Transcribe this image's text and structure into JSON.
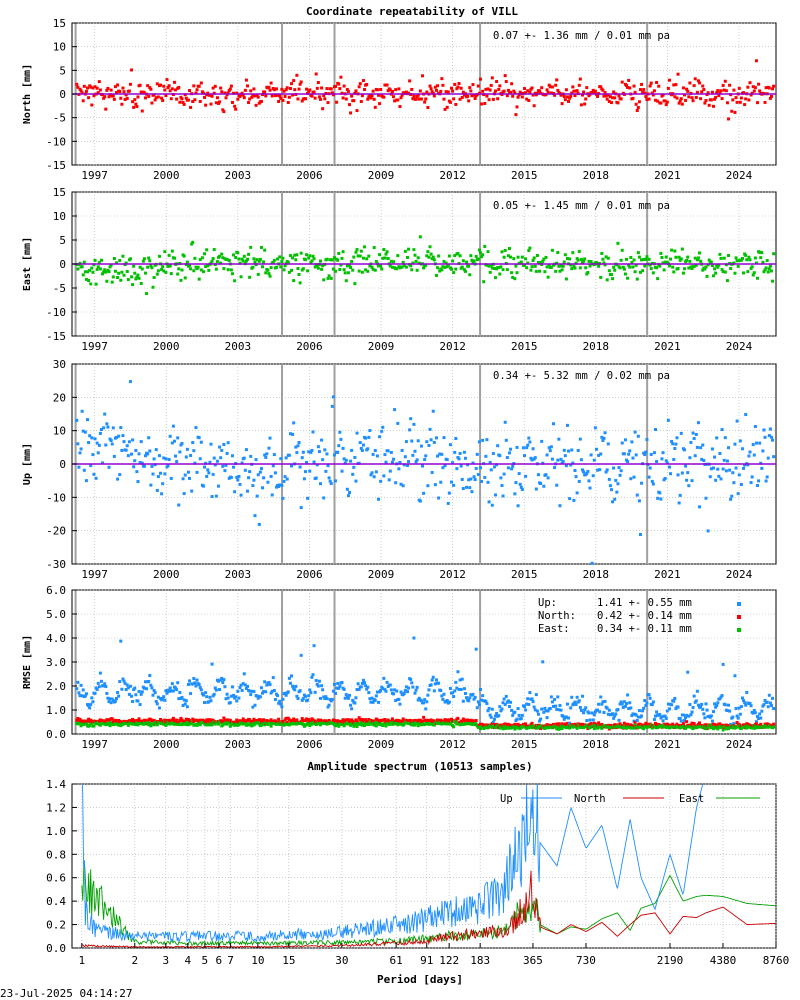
{
  "title": "Coordinate repeatability of VILL",
  "timestamp": "23-Jul-2025 04:14:27",
  "colors": {
    "north": "#ff0000",
    "east": "#00c000",
    "up": "#1e8fff",
    "mean_line": "#9400d3",
    "offset_line": "#a0a0a0",
    "grid": "#b0b0b0"
  },
  "time_axis": {
    "tick_labels": [
      "1997",
      "2000",
      "2003",
      "2006",
      "2009",
      "2012",
      "2015",
      "2018",
      "2021",
      "2024"
    ],
    "tick_years": [
      1997,
      2000,
      2003,
      2006,
      2009,
      2012,
      2015,
      2018,
      2021,
      2024
    ],
    "xlim": [
      1996.05,
      2025.55
    ],
    "equipment_changes": [
      1996.2,
      2004.85,
      2007.05,
      2013.15,
      2020.15
    ]
  },
  "chart_data": [
    {
      "type": "scatter",
      "component": "North",
      "ylabel": "North [mm]",
      "ylim": [
        -15,
        15
      ],
      "y_ticks": [
        -15,
        -10,
        -5,
        0,
        5,
        10,
        15
      ],
      "y_tick_labels": [
        "-15",
        "-10",
        "-5",
        "0",
        "5",
        "10",
        "15"
      ],
      "stats_label": "0.07 +- 1.36 mm /  0.01 mm pa",
      "mean": 0.07,
      "std": 1.36,
      "rate": 0.01,
      "grid": true
    },
    {
      "type": "scatter",
      "component": "East",
      "ylabel": "East [mm]",
      "ylim": [
        -15,
        15
      ],
      "y_ticks": [
        -15,
        -10,
        -5,
        0,
        5,
        10,
        15
      ],
      "y_tick_labels": [
        "-15",
        "-10",
        "-5",
        "0",
        "5",
        "10",
        "15"
      ],
      "stats_label": "0.05 +- 1.45 mm /  0.01 mm pa",
      "mean": 0.05,
      "std": 1.45,
      "rate": 0.01,
      "grid": true
    },
    {
      "type": "scatter",
      "component": "Up",
      "ylabel": "Up [mm]",
      "ylim": [
        -30,
        30
      ],
      "y_ticks": [
        -30,
        -20,
        -10,
        0,
        10,
        20,
        30
      ],
      "y_tick_labels": [
        "-30",
        "-20",
        "-10",
        "0",
        "10",
        "20",
        "30"
      ],
      "stats_label": "0.34 +- 5.32 mm /  0.02 mm pa",
      "mean": 0.34,
      "std": 5.32,
      "rate": 0.02,
      "grid": true
    },
    {
      "type": "scatter",
      "component": "RMSE",
      "ylabel": "RMSE [mm]",
      "ylim": [
        0,
        6
      ],
      "y_ticks": [
        0,
        1,
        2,
        3,
        4,
        5,
        6
      ],
      "y_tick_labels": [
        "0.0",
        "1.0",
        "2.0",
        "3.0",
        "4.0",
        "5.0",
        "6.0"
      ],
      "legend": [
        {
          "name": "Up:",
          "stats": "1.41 +- 0.55 mm",
          "mean": 1.41,
          "std": 0.55,
          "color": "#1e8fff"
        },
        {
          "name": "North:",
          "stats": "0.42 +- 0.14 mm",
          "mean": 0.42,
          "std": 0.14,
          "color": "#ff0000"
        },
        {
          "name": "East:",
          "stats": "0.34 +- 0.11 mm",
          "mean": 0.34,
          "std": 0.11,
          "color": "#00c000"
        }
      ],
      "grid": true
    },
    {
      "type": "line",
      "title": "Amplitude spectrum (10513 samples)",
      "xlabel": "Period [days]",
      "xscale": "log",
      "xlim": [
        0.88,
        8760
      ],
      "x_ticks": [
        1,
        2,
        3,
        4,
        5,
        6,
        7,
        10,
        15,
        30,
        61,
        91,
        122,
        183,
        365,
        730,
        2190,
        4380,
        8760
      ],
      "x_tick_labels": [
        "1",
        "2",
        "3",
        "4",
        "5",
        "6",
        "7",
        "10",
        "15",
        "30",
        "61",
        "91",
        "122",
        "183",
        "365",
        "730",
        "2190",
        "4380",
        "8760"
      ],
      "ylim": [
        0,
        1.4
      ],
      "y_ticks": [
        0,
        0.2,
        0.4,
        0.6,
        0.8,
        1.0,
        1.2,
        1.4
      ],
      "y_tick_labels": [
        "0.0",
        "0.2",
        "0.4",
        "0.6",
        "0.8",
        "1.0",
        "1.2",
        "1.4"
      ],
      "legend_position": "top-right",
      "series": [
        {
          "name": "Up",
          "color": "#1e8fff",
          "x": [
            1,
            1.05,
            1.2,
            2,
            5,
            10,
            30,
            61,
            91,
            122,
            183,
            250,
            300,
            365,
            400,
            500,
            600,
            730,
            900,
            1100,
            1300,
            1500,
            1800,
            2190,
            2600,
            3100,
            3500
          ],
          "y": [
            1.45,
            0.3,
            0.15,
            0.1,
            0.1,
            0.1,
            0.13,
            0.2,
            0.25,
            0.3,
            0.35,
            0.5,
            0.8,
            1.3,
            0.9,
            0.7,
            1.2,
            0.85,
            1.05,
            0.5,
            1.1,
            0.6,
            0.33,
            0.8,
            0.45,
            1.2,
            1.5
          ]
        },
        {
          "name": "North",
          "color": "#cc0000",
          "x": [
            1,
            2,
            5,
            10,
            30,
            61,
            91,
            122,
            183,
            250,
            300,
            365,
            400,
            500,
            600,
            730,
            900,
            1100,
            1300,
            1500,
            1800,
            2190,
            2600,
            3100,
            3500,
            4380,
            6000,
            8760
          ],
          "y": [
            0.02,
            0.01,
            0.01,
            0.01,
            0.02,
            0.04,
            0.06,
            0.1,
            0.12,
            0.15,
            0.25,
            0.53,
            0.18,
            0.12,
            0.2,
            0.14,
            0.22,
            0.1,
            0.2,
            0.28,
            0.3,
            0.12,
            0.27,
            0.26,
            0.3,
            0.35,
            0.2,
            0.21
          ]
        },
        {
          "name": "East",
          "color": "#00a000",
          "x": [
            1,
            2,
            5,
            10,
            30,
            61,
            91,
            122,
            183,
            250,
            300,
            365,
            400,
            500,
            600,
            730,
            900,
            1100,
            1300,
            1500,
            1800,
            2190,
            2600,
            3100,
            3500,
            4380,
            6000,
            8760
          ],
          "y": [
            0.6,
            0.05,
            0.04,
            0.04,
            0.05,
            0.06,
            0.08,
            0.1,
            0.12,
            0.15,
            0.28,
            0.42,
            0.2,
            0.12,
            0.18,
            0.16,
            0.25,
            0.3,
            0.15,
            0.34,
            0.38,
            0.62,
            0.4,
            0.44,
            0.45,
            0.44,
            0.38,
            0.36
          ]
        }
      ]
    }
  ]
}
